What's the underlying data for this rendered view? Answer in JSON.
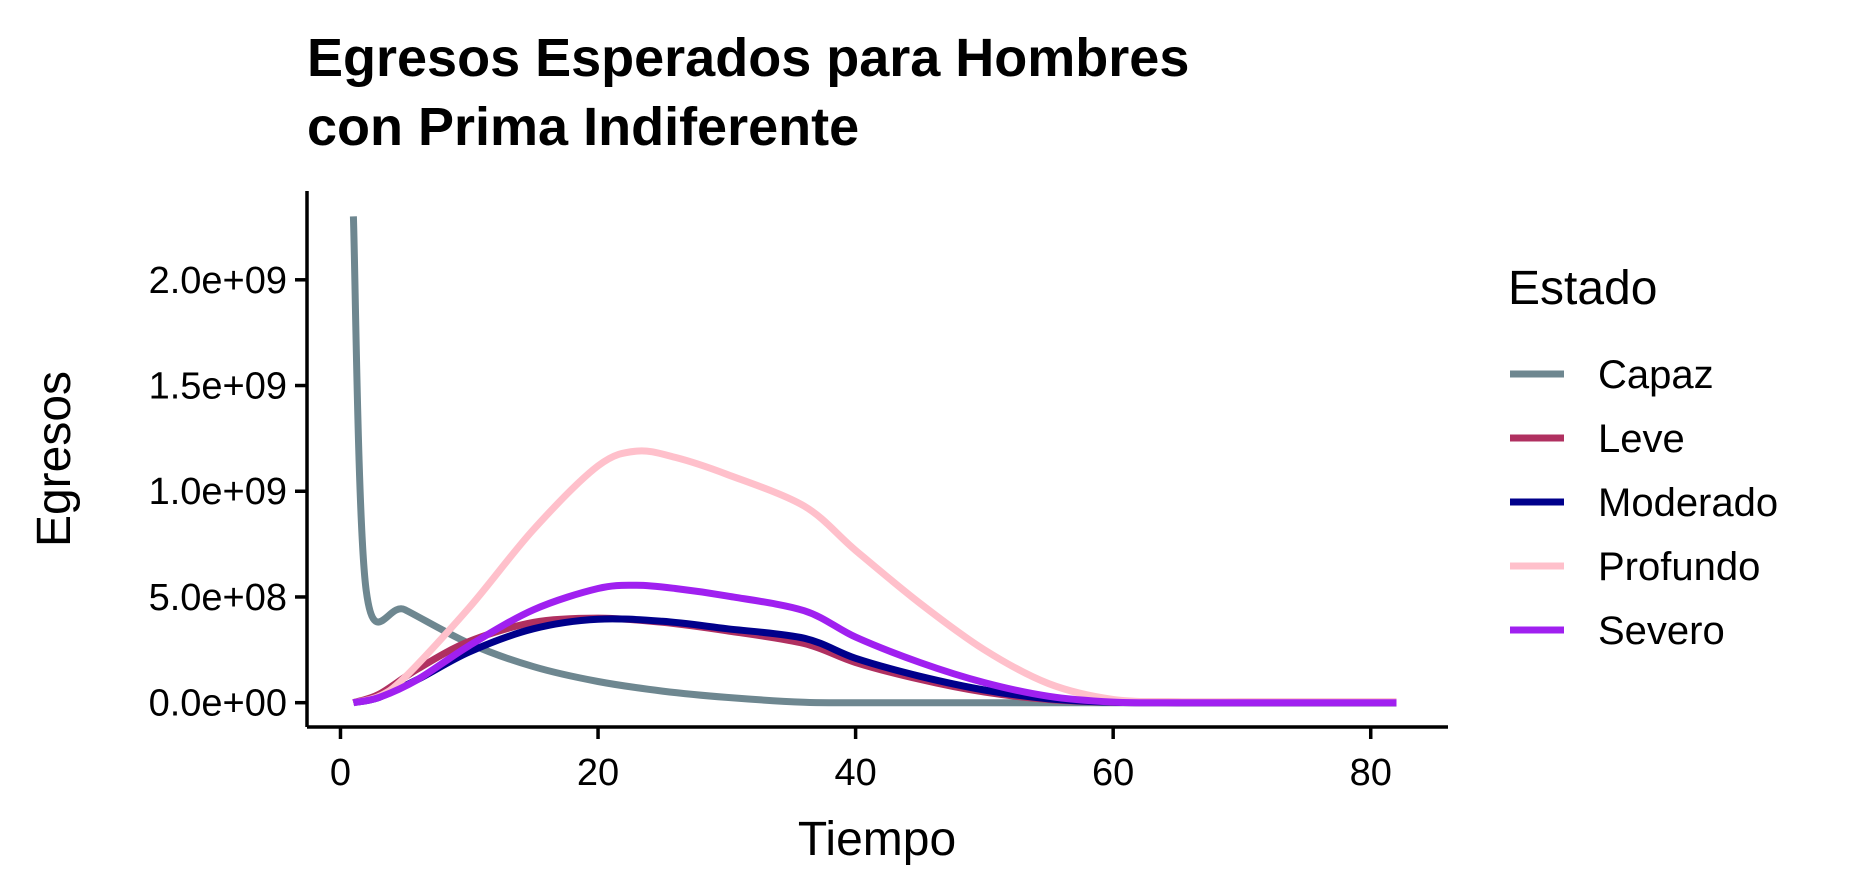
{
  "chart_data": {
    "type": "line",
    "title_lines": [
      "Egresos Esperados para Hombres",
      "con Prima Indiferente"
    ],
    "xlabel": "Tiempo",
    "ylabel": "Egresos",
    "xlim": [
      -2.6,
      86
    ],
    "ylim": [
      -115000000,
      2420000000
    ],
    "x_ticks": [
      0,
      20,
      40,
      60,
      80
    ],
    "x_tick_labels": [
      "0",
      "20",
      "40",
      "60",
      "80"
    ],
    "y_ticks": [
      0,
      500000000,
      1000000000,
      1500000000,
      2000000000
    ],
    "y_tick_labels": [
      "0.0e+00",
      "5.0e+08",
      "1.0e+09",
      "1.5e+09",
      "2.0e+09"
    ],
    "grid": false,
    "legend": {
      "title": "Estado",
      "position": "right"
    },
    "series": [
      {
        "name": "Capaz",
        "color": "#6e8790",
        "points": [
          [
            1,
            2300000000
          ],
          [
            2,
            530000000
          ],
          [
            5,
            440000000
          ],
          [
            10,
            280000000
          ],
          [
            15,
            170000000
          ],
          [
            20,
            100000000
          ],
          [
            25,
            55000000
          ],
          [
            30,
            25000000
          ],
          [
            36,
            2000000
          ],
          [
            40,
            0
          ],
          [
            50,
            0
          ],
          [
            60,
            0
          ],
          [
            70,
            0
          ],
          [
            82,
            0
          ]
        ]
      },
      {
        "name": "Leve",
        "color": "#b03060",
        "points": [
          [
            1,
            0
          ],
          [
            3,
            40000000
          ],
          [
            6,
            160000000
          ],
          [
            10,
            290000000
          ],
          [
            15,
            380000000
          ],
          [
            20,
            400000000
          ],
          [
            25,
            380000000
          ],
          [
            30,
            340000000
          ],
          [
            36,
            280000000
          ],
          [
            40,
            190000000
          ],
          [
            45,
            110000000
          ],
          [
            50,
            50000000
          ],
          [
            55,
            15000000
          ],
          [
            60,
            2000000
          ],
          [
            65,
            0
          ],
          [
            70,
            0
          ],
          [
            82,
            0
          ]
        ]
      },
      {
        "name": "Moderado",
        "color": "#00008b",
        "points": [
          [
            1,
            0
          ],
          [
            3,
            25000000
          ],
          [
            6,
            110000000
          ],
          [
            10,
            240000000
          ],
          [
            15,
            350000000
          ],
          [
            20,
            395000000
          ],
          [
            25,
            385000000
          ],
          [
            30,
            350000000
          ],
          [
            36,
            305000000
          ],
          [
            40,
            210000000
          ],
          [
            45,
            125000000
          ],
          [
            50,
            60000000
          ],
          [
            55,
            18000000
          ],
          [
            60,
            2000000
          ],
          [
            65,
            0
          ],
          [
            70,
            0
          ],
          [
            82,
            0
          ]
        ]
      },
      {
        "name": "Profundo",
        "color": "#ffc0cb",
        "points": [
          [
            1,
            0
          ],
          [
            3,
            30000000
          ],
          [
            5,
            120000000
          ],
          [
            10,
            450000000
          ],
          [
            15,
            820000000
          ],
          [
            20,
            1120000000
          ],
          [
            23,
            1190000000
          ],
          [
            26,
            1160000000
          ],
          [
            30,
            1080000000
          ],
          [
            36,
            930000000
          ],
          [
            40,
            720000000
          ],
          [
            45,
            470000000
          ],
          [
            50,
            250000000
          ],
          [
            55,
            90000000
          ],
          [
            60,
            15000000
          ],
          [
            65,
            5000000
          ],
          [
            70,
            5000000
          ],
          [
            82,
            5000000
          ]
        ]
      },
      {
        "name": "Severo",
        "color": "#a020f0",
        "points": [
          [
            1,
            0
          ],
          [
            3,
            25000000
          ],
          [
            6,
            110000000
          ],
          [
            10,
            270000000
          ],
          [
            15,
            440000000
          ],
          [
            20,
            540000000
          ],
          [
            23,
            555000000
          ],
          [
            26,
            540000000
          ],
          [
            30,
            505000000
          ],
          [
            36,
            435000000
          ],
          [
            40,
            310000000
          ],
          [
            45,
            190000000
          ],
          [
            50,
            95000000
          ],
          [
            55,
            30000000
          ],
          [
            60,
            3000000
          ],
          [
            65,
            0
          ],
          [
            70,
            0
          ],
          [
            82,
            0
          ]
        ]
      }
    ]
  }
}
